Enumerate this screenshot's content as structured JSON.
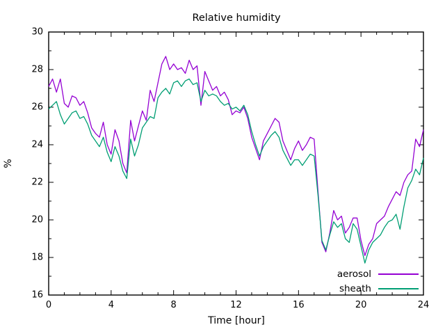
{
  "window": {
    "background": "#ffffff"
  },
  "chart_data": {
    "type": "line",
    "title": "Relative humidity",
    "xlabel": "Time [hour]",
    "ylabel": "%",
    "xlim": [
      0,
      24
    ],
    "ylim": [
      16,
      30
    ],
    "x_major_ticks": [
      0,
      4,
      8,
      12,
      16,
      20,
      24
    ],
    "x_minor_step": 1,
    "y_major_ticks": [
      16,
      18,
      20,
      22,
      24,
      26,
      28,
      30
    ],
    "y_minor_step": 1,
    "grid": false,
    "tick_style": "inward-mirrored",
    "legend_position": "inside-bottom-right",
    "axis_color": "#000000",
    "x_step": 0.25,
    "series": [
      {
        "name": "aerosol",
        "color": "#9400d3",
        "values": [
          27.1,
          27.5,
          26.8,
          27.5,
          26.2,
          26.0,
          26.6,
          26.5,
          26.1,
          26.3,
          25.7,
          24.9,
          24.6,
          24.4,
          25.2,
          24.0,
          23.5,
          24.8,
          24.2,
          23.0,
          22.5,
          25.3,
          24.2,
          25.0,
          25.8,
          25.3,
          26.9,
          26.3,
          27.3,
          28.3,
          28.7,
          28.0,
          28.3,
          28.0,
          28.1,
          27.8,
          28.5,
          28.0,
          28.2,
          26.1,
          27.9,
          27.4,
          26.9,
          27.1,
          26.6,
          26.8,
          26.4,
          25.6,
          25.8,
          25.7,
          26.0,
          25.4,
          24.4,
          23.8,
          23.2,
          24.2,
          24.6,
          25.0,
          25.4,
          25.2,
          24.2,
          23.7,
          23.2,
          23.8,
          24.2,
          23.7,
          24.0,
          24.4,
          24.3,
          21.5,
          18.8,
          18.3,
          19.3,
          20.5,
          20.0,
          20.2,
          19.3,
          19.6,
          20.1,
          20.1,
          18.9,
          18.1,
          18.7,
          19.0,
          19.8,
          20.0,
          20.2,
          20.7,
          21.1,
          21.5,
          21.3,
          22.0,
          22.4,
          22.6,
          24.3,
          23.9,
          24.8
        ]
      },
      {
        "name": "sheath",
        "color": "#009e73",
        "values": [
          25.9,
          26.1,
          26.3,
          25.6,
          25.1,
          25.4,
          25.7,
          25.8,
          25.4,
          25.5,
          25.1,
          24.5,
          24.2,
          23.9,
          24.4,
          23.6,
          23.1,
          23.9,
          23.4,
          22.6,
          22.2,
          24.3,
          23.4,
          24.0,
          24.9,
          25.2,
          25.5,
          25.4,
          26.5,
          26.8,
          27.0,
          26.7,
          27.3,
          27.4,
          27.1,
          27.4,
          27.5,
          27.2,
          27.3,
          26.3,
          26.9,
          26.6,
          26.7,
          26.6,
          26.3,
          26.1,
          26.2,
          25.9,
          26.0,
          25.8,
          26.1,
          25.6,
          24.7,
          24.0,
          23.4,
          23.9,
          24.2,
          24.5,
          24.7,
          24.4,
          23.7,
          23.3,
          22.9,
          23.2,
          23.2,
          22.9,
          23.2,
          23.5,
          23.4,
          21.3,
          18.9,
          18.4,
          19.2,
          19.9,
          19.6,
          19.8,
          19.0,
          18.8,
          19.8,
          19.5,
          18.6,
          17.7,
          18.4,
          18.8,
          19.0,
          19.2,
          19.6,
          19.9,
          20.0,
          20.3,
          19.5,
          20.7,
          21.7,
          22.1,
          22.7,
          22.4,
          23.3
        ]
      }
    ]
  },
  "legend": {
    "entries": [
      {
        "label": "aerosol",
        "color": "#9400d3"
      },
      {
        "label": "sheath",
        "color": "#009e73"
      }
    ]
  }
}
